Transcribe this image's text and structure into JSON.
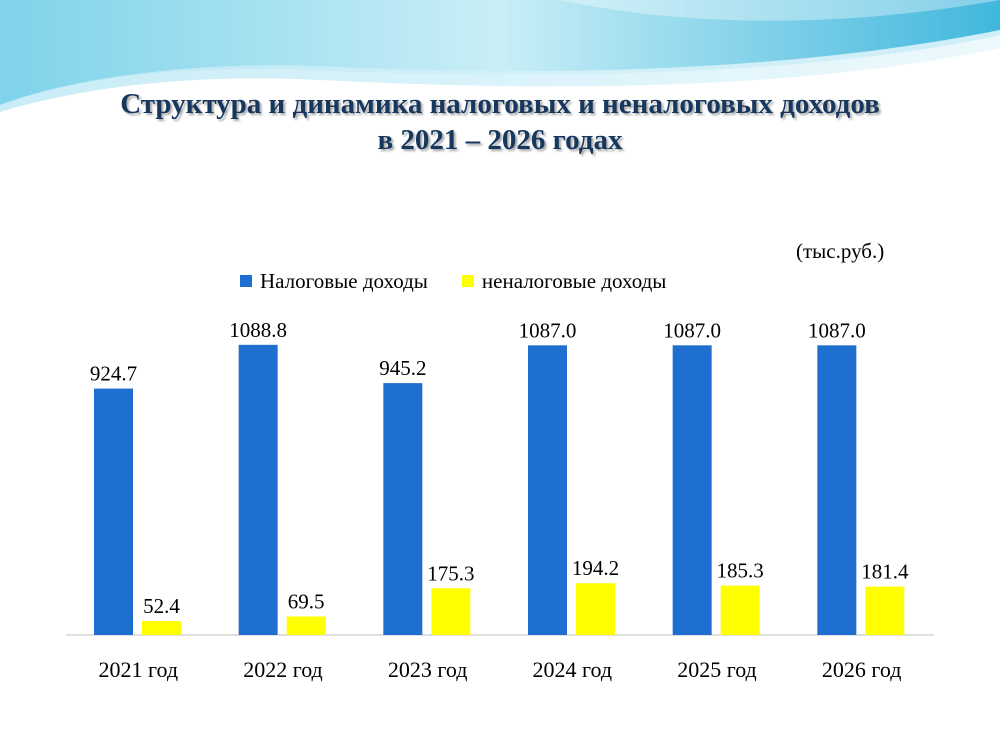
{
  "title_lines": [
    "Структура и динамика налоговых и неналоговых доходов",
    "в 2021 – 2026 годах"
  ],
  "unit_label": "(тыс.руб.)",
  "colors": {
    "tax": "#1f6fd1",
    "nontax": "#ffff00",
    "title": "#17375e"
  },
  "chart_data": {
    "type": "bar",
    "categories": [
      "2021 год",
      "2022 год",
      "2023 год",
      "2024 год",
      "2025 год",
      "2026 год"
    ],
    "series": [
      {
        "name": "Налоговые доходы",
        "values": [
          924.7,
          1088.8,
          945.2,
          1087.0,
          1087.0,
          1087.0
        ],
        "labels": [
          "924.7",
          "1088.8",
          "945.2",
          "1087.0",
          "1087.0",
          "1087.0"
        ]
      },
      {
        "name": "неналоговые доходы",
        "values": [
          52.4,
          69.5,
          175.3,
          194.2,
          185.3,
          181.4
        ],
        "labels": [
          "52.4",
          "69.5",
          "175.3",
          "194.2",
          "185.3",
          "181.4"
        ]
      }
    ],
    "legend_position": "top",
    "grid": false
  }
}
